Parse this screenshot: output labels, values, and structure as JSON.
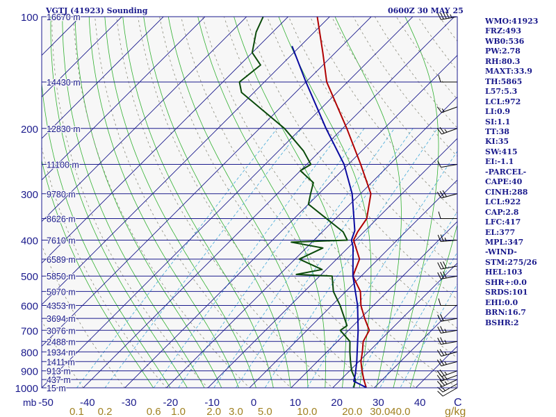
{
  "header": {
    "station": "VGTJ (41923) Sounding",
    "time": "0600Z 30 MAY 25"
  },
  "indices": [
    "WMO:41923",
    "FRZ:493",
    "WB0:536",
    "PW:2.78",
    "RH:80.3",
    "MAXT:33.9",
    "TH:5865",
    "L57:5.3",
    "LCL:972",
    "LI:0.9",
    "SI:1.1",
    "TT:38",
    "KI:35",
    "SW:415",
    "EI:-1.1",
    "-PARCEL-",
    "CAPE:40",
    "CINH:288",
    "LCL:922",
    "CAP:2.8",
    "LFC:417",
    "EL:377",
    "MPL:347",
    "-WIND-",
    "STM:275/26",
    "HEL:103",
    "SHR+:0.0",
    "SRDS:101",
    "EHI:0.0",
    "BRN:16.7",
    "BSHR:2"
  ],
  "chart_data": {
    "type": "line",
    "subtype": "skew-T log-P sounding",
    "y_axis": {
      "label": "mb",
      "scale": "log",
      "range": [
        1000,
        100
      ]
    },
    "x_axis": {
      "label": "C",
      "range": [
        -50,
        50
      ],
      "skew": "45-degree"
    },
    "pressure_ticks": [
      {
        "p": 100,
        "label": "100"
      },
      {
        "p": 200,
        "label": "200"
      },
      {
        "p": 300,
        "label": "300"
      },
      {
        "p": 400,
        "label": "400"
      },
      {
        "p": 500,
        "label": "500"
      },
      {
        "p": 600,
        "label": "600"
      },
      {
        "p": 700,
        "label": "700"
      },
      {
        "p": 800,
        "label": "800"
      },
      {
        "p": 900,
        "label": "900"
      },
      {
        "p": 1000,
        "label": "1000"
      }
    ],
    "temp_ticks": [
      "-50",
      "-40",
      "-30",
      "-20",
      "-10",
      "0",
      "10",
      "20",
      "30",
      "40"
    ],
    "unit_label_left": "mb",
    "unit_label_right": "C",
    "height_labels": [
      {
        "p": 100,
        "label": "16670 m"
      },
      {
        "p": 150,
        "label": "14430 m"
      },
      {
        "p": 200,
        "label": "12830 m"
      },
      {
        "p": 250,
        "label": "11100 m"
      },
      {
        "p": 300,
        "label": "9780 m"
      },
      {
        "p": 350,
        "label": "8626 m"
      },
      {
        "p": 400,
        "label": "7610 m"
      },
      {
        "p": 450,
        "label": "6589 m"
      },
      {
        "p": 500,
        "label": "5850 m"
      },
      {
        "p": 550,
        "label": "5070 m"
      },
      {
        "p": 600,
        "label": "4353 m"
      },
      {
        "p": 650,
        "label": "3694 m"
      },
      {
        "p": 700,
        "label": "3076 m"
      },
      {
        "p": 750,
        "label": "2488 m"
      },
      {
        "p": 800,
        "label": "1934 m"
      },
      {
        "p": 850,
        "label": "1411 m"
      },
      {
        "p": 900,
        "label": "913 m"
      },
      {
        "p": 950,
        "label": "437 m"
      },
      {
        "p": 1000,
        "label": "15 m"
      }
    ],
    "mixing_ratio_labels": [
      "0.1",
      "0.2",
      "0.6",
      "1.0",
      "2.0",
      "3.0",
      "5.0",
      "10.0",
      "20.0",
      "30.0",
      "40.0"
    ],
    "mixing_ratio_values": [
      0.1,
      0.2,
      0.6,
      1.0,
      2.0,
      3.0,
      5.0,
      10.0,
      20.0,
      30.0,
      40.0
    ],
    "mixing_ratio_unit": "g/kg",
    "series": [
      {
        "role": "temperature",
        "color": "#b00000",
        "points": [
          {
            "p": 998,
            "t": 28.0
          },
          {
            "p": 950,
            "t": 25.5
          },
          {
            "p": 900,
            "t": 23.0
          },
          {
            "p": 850,
            "t": 20.5
          },
          {
            "p": 800,
            "t": 18.5
          },
          {
            "p": 750,
            "t": 16.2
          },
          {
            "p": 700,
            "t": 15.0
          },
          {
            "p": 650,
            "t": 11.0
          },
          {
            "p": 600,
            "t": 7.0
          },
          {
            "p": 550,
            "t": 3.5
          },
          {
            "p": 500,
            "t": -2.0
          },
          {
            "p": 450,
            "t": -4.5
          },
          {
            "p": 400,
            "t": -10.5
          },
          {
            "p": 380,
            "t": -11.5
          },
          {
            "p": 350,
            "t": -12.5
          },
          {
            "p": 300,
            "t": -17.5
          },
          {
            "p": 250,
            "t": -27.0
          },
          {
            "p": 200,
            "t": -39.0
          },
          {
            "p": 150,
            "t": -55.0
          },
          {
            "p": 125,
            "t": -63.0
          },
          {
            "p": 100,
            "t": -73.0
          }
        ]
      },
      {
        "role": "dewpoint",
        "color": "#0a4a0a",
        "points": [
          {
            "p": 998,
            "t": 25.0
          },
          {
            "p": 950,
            "t": 23.5
          },
          {
            "p": 900,
            "t": 20.5
          },
          {
            "p": 850,
            "t": 18.0
          },
          {
            "p": 800,
            "t": 15.5
          },
          {
            "p": 750,
            "t": 13.0
          },
          {
            "p": 700,
            "t": 8.0
          },
          {
            "p": 680,
            "t": 8.5
          },
          {
            "p": 600,
            "t": 2.0
          },
          {
            "p": 550,
            "t": -3.0
          },
          {
            "p": 500,
            "t": -7.0
          },
          {
            "p": 495,
            "t": -16.0
          },
          {
            "p": 480,
            "t": -11.0
          },
          {
            "p": 450,
            "t": -19.0
          },
          {
            "p": 420,
            "t": -16.0
          },
          {
            "p": 405,
            "t": -25.0
          },
          {
            "p": 400,
            "t": -12.0
          },
          {
            "p": 380,
            "t": -15.0
          },
          {
            "p": 320,
            "t": -30.0
          },
          {
            "p": 300,
            "t": -32.0
          },
          {
            "p": 280,
            "t": -34.0
          },
          {
            "p": 260,
            "t": -40.0
          },
          {
            "p": 250,
            "t": -39.0
          },
          {
            "p": 230,
            "t": -44.0
          },
          {
            "p": 200,
            "t": -54.0
          },
          {
            "p": 160,
            "t": -73.0
          },
          {
            "p": 150,
            "t": -76.0
          },
          {
            "p": 135,
            "t": -75.0
          },
          {
            "p": 125,
            "t": -80.0
          },
          {
            "p": 110,
            "t": -84.0
          },
          {
            "p": 100,
            "t": -86.0
          }
        ]
      },
      {
        "role": "parcel",
        "color": "#0a0aa0",
        "points": [
          {
            "p": 998,
            "t": 28.0
          },
          {
            "p": 960,
            "t": 23.5
          },
          {
            "p": 922,
            "t": 22.3
          },
          {
            "p": 850,
            "t": 19.5
          },
          {
            "p": 700,
            "t": 12.3
          },
          {
            "p": 600,
            "t": 6.2
          },
          {
            "p": 500,
            "t": -2.0
          },
          {
            "p": 417,
            "t": -9.0
          },
          {
            "p": 400,
            "t": -11.0
          },
          {
            "p": 377,
            "t": -12.5
          },
          {
            "p": 300,
            "t": -22.0
          },
          {
            "p": 250,
            "t": -31.0
          },
          {
            "p": 200,
            "t": -44.0
          },
          {
            "p": 150,
            "t": -60.0
          },
          {
            "p": 120,
            "t": -72.0
          }
        ]
      }
    ],
    "wind_barbs": [
      {
        "p": 1000,
        "dir": 240,
        "spd": 10
      },
      {
        "p": 975,
        "dir": 240,
        "spd": 20
      },
      {
        "p": 950,
        "dir": 245,
        "spd": 25
      },
      {
        "p": 925,
        "dir": 250,
        "spd": 25
      },
      {
        "p": 900,
        "dir": 250,
        "spd": 25
      },
      {
        "p": 850,
        "dir": 255,
        "spd": 25
      },
      {
        "p": 800,
        "dir": 255,
        "spd": 25
      },
      {
        "p": 750,
        "dir": 260,
        "spd": 25
      },
      {
        "p": 700,
        "dir": 260,
        "spd": 25
      },
      {
        "p": 650,
        "dir": 260,
        "spd": 20
      },
      {
        "p": 600,
        "dir": 270,
        "spd": 10
      },
      {
        "p": 500,
        "dir": 260,
        "spd": 30
      },
      {
        "p": 470,
        "dir": 260,
        "spd": 30
      },
      {
        "p": 400,
        "dir": 265,
        "spd": 25
      },
      {
        "p": 350,
        "dir": 270,
        "spd": 10
      },
      {
        "p": 300,
        "dir": 255,
        "spd": 30
      },
      {
        "p": 250,
        "dir": 260,
        "spd": 10
      },
      {
        "p": 200,
        "dir": 250,
        "spd": 25
      },
      {
        "p": 175,
        "dir": 250,
        "spd": 15
      },
      {
        "p": 150,
        "dir": 270,
        "spd": 10
      },
      {
        "p": 100,
        "dir": 260,
        "spd": 45
      }
    ]
  }
}
